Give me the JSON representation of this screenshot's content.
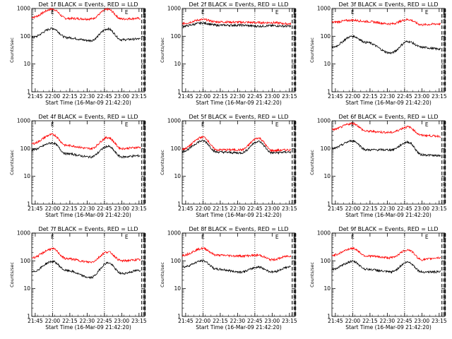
{
  "chart_data": {
    "type": "line",
    "layout": "3x3 grid",
    "y_scale": "log",
    "ylim": [
      1,
      1000
    ],
    "y_ticks": [
      "1",
      "10",
      "100",
      "1000"
    ],
    "xlim": [
      "21:42",
      "23:20"
    ],
    "x_ticks": [
      "21:45",
      "22:00",
      "22:15",
      "22:30",
      "22:45",
      "23:00",
      "23:15"
    ],
    "xlabel": "Start Time (16-Mar-09 21:42:20)",
    "ylabel": "Counts/sec",
    "series_colors": {
      "events": "#000000",
      "lld": "#ff0000"
    },
    "marker_label": "E",
    "panels": [
      {
        "title": "Det 1f BLACK = Events, RED = LLD",
        "events": [
          [
            21.7,
            90
          ],
          [
            22.0,
            190
          ],
          [
            22.2,
            90
          ],
          [
            22.55,
            70
          ],
          [
            22.8,
            185
          ],
          [
            23.0,
            75
          ],
          [
            23.25,
            80
          ]
        ],
        "lld": [
          [
            21.7,
            480
          ],
          [
            22.0,
            950
          ],
          [
            22.2,
            440
          ],
          [
            22.55,
            420
          ],
          [
            22.8,
            930
          ],
          [
            23.0,
            420
          ],
          [
            23.25,
            440
          ]
        ]
      },
      {
        "title": "Det 2f BLACK = Events, RED = LLD",
        "events": [
          [
            21.7,
            230
          ],
          [
            22.0,
            300
          ],
          [
            22.2,
            250
          ],
          [
            22.55,
            250
          ],
          [
            22.8,
            230
          ],
          [
            23.0,
            240
          ],
          [
            23.25,
            230
          ]
        ],
        "lld": [
          [
            21.7,
            290
          ],
          [
            22.0,
            400
          ],
          [
            22.2,
            330
          ],
          [
            22.55,
            320
          ],
          [
            22.8,
            310
          ],
          [
            23.0,
            310
          ],
          [
            23.25,
            280
          ]
        ]
      },
      {
        "title": "Det 3f BLACK = Events, RED = LLD",
        "events": [
          [
            21.7,
            40
          ],
          [
            22.0,
            100
          ],
          [
            22.2,
            60
          ],
          [
            22.55,
            25
          ],
          [
            22.8,
            65
          ],
          [
            23.0,
            40
          ],
          [
            23.25,
            35
          ]
        ],
        "lld": [
          [
            21.7,
            320
          ],
          [
            22.0,
            380
          ],
          [
            22.2,
            340
          ],
          [
            22.55,
            280
          ],
          [
            22.8,
            400
          ],
          [
            23.0,
            260
          ],
          [
            23.25,
            280
          ]
        ]
      },
      {
        "title": "Det 4f BLACK = Events, RED = LLD",
        "events": [
          [
            21.7,
            90
          ],
          [
            22.0,
            160
          ],
          [
            22.2,
            65
          ],
          [
            22.55,
            50
          ],
          [
            22.8,
            120
          ],
          [
            23.0,
            50
          ],
          [
            23.25,
            55
          ]
        ],
        "lld": [
          [
            21.7,
            150
          ],
          [
            22.0,
            320
          ],
          [
            22.2,
            130
          ],
          [
            22.55,
            100
          ],
          [
            22.8,
            250
          ],
          [
            23.0,
            100
          ],
          [
            23.25,
            110
          ]
        ]
      },
      {
        "title": "Det 5f BLACK = Events, RED = LLD",
        "events": [
          [
            21.7,
            80
          ],
          [
            22.0,
            190
          ],
          [
            22.2,
            75
          ],
          [
            22.55,
            70
          ],
          [
            22.8,
            180
          ],
          [
            23.0,
            70
          ],
          [
            23.25,
            75
          ]
        ],
        "lld": [
          [
            21.7,
            95
          ],
          [
            22.0,
            260
          ],
          [
            22.2,
            90
          ],
          [
            22.55,
            90
          ],
          [
            22.8,
            240
          ],
          [
            23.0,
            85
          ],
          [
            23.25,
            90
          ]
        ]
      },
      {
        "title": "Det 6f BLACK = Events, RED = LLD",
        "events": [
          [
            21.7,
            100
          ],
          [
            22.0,
            190
          ],
          [
            22.2,
            90
          ],
          [
            22.55,
            90
          ],
          [
            22.8,
            170
          ],
          [
            23.0,
            60
          ],
          [
            23.25,
            55
          ]
        ],
        "lld": [
          [
            21.7,
            480
          ],
          [
            22.0,
            800
          ],
          [
            22.2,
            420
          ],
          [
            22.55,
            380
          ],
          [
            22.8,
            600
          ],
          [
            23.0,
            300
          ],
          [
            23.25,
            280
          ]
        ]
      },
      {
        "title": "Det 7f BLACK = Events, RED = LLD",
        "events": [
          [
            21.7,
            40
          ],
          [
            22.0,
            95
          ],
          [
            22.2,
            45
          ],
          [
            22.55,
            25
          ],
          [
            22.8,
            85
          ],
          [
            23.0,
            35
          ],
          [
            23.25,
            45
          ]
        ],
        "lld": [
          [
            21.7,
            130
          ],
          [
            22.0,
            270
          ],
          [
            22.2,
            120
          ],
          [
            22.55,
            90
          ],
          [
            22.8,
            210
          ],
          [
            23.0,
            100
          ],
          [
            23.25,
            110
          ]
        ]
      },
      {
        "title": "Det 8f BLACK = Events, RED = LLD",
        "events": [
          [
            21.7,
            60
          ],
          [
            22.0,
            100
          ],
          [
            22.2,
            50
          ],
          [
            22.55,
            40
          ],
          [
            22.8,
            60
          ],
          [
            23.0,
            40
          ],
          [
            23.25,
            60
          ]
        ],
        "lld": [
          [
            21.7,
            160
          ],
          [
            22.0,
            280
          ],
          [
            22.2,
            160
          ],
          [
            22.55,
            150
          ],
          [
            22.8,
            160
          ],
          [
            23.0,
            110
          ],
          [
            23.25,
            150
          ]
        ]
      },
      {
        "title": "Det 9f BLACK = Events, RED = LLD",
        "events": [
          [
            21.7,
            50
          ],
          [
            22.0,
            95
          ],
          [
            22.2,
            50
          ],
          [
            22.55,
            40
          ],
          [
            22.8,
            90
          ],
          [
            23.0,
            40
          ],
          [
            23.25,
            40
          ]
        ],
        "lld": [
          [
            21.7,
            160
          ],
          [
            22.0,
            280
          ],
          [
            22.2,
            150
          ],
          [
            22.55,
            130
          ],
          [
            22.8,
            250
          ],
          [
            23.0,
            110
          ],
          [
            23.25,
            130
          ]
        ]
      }
    ]
  }
}
